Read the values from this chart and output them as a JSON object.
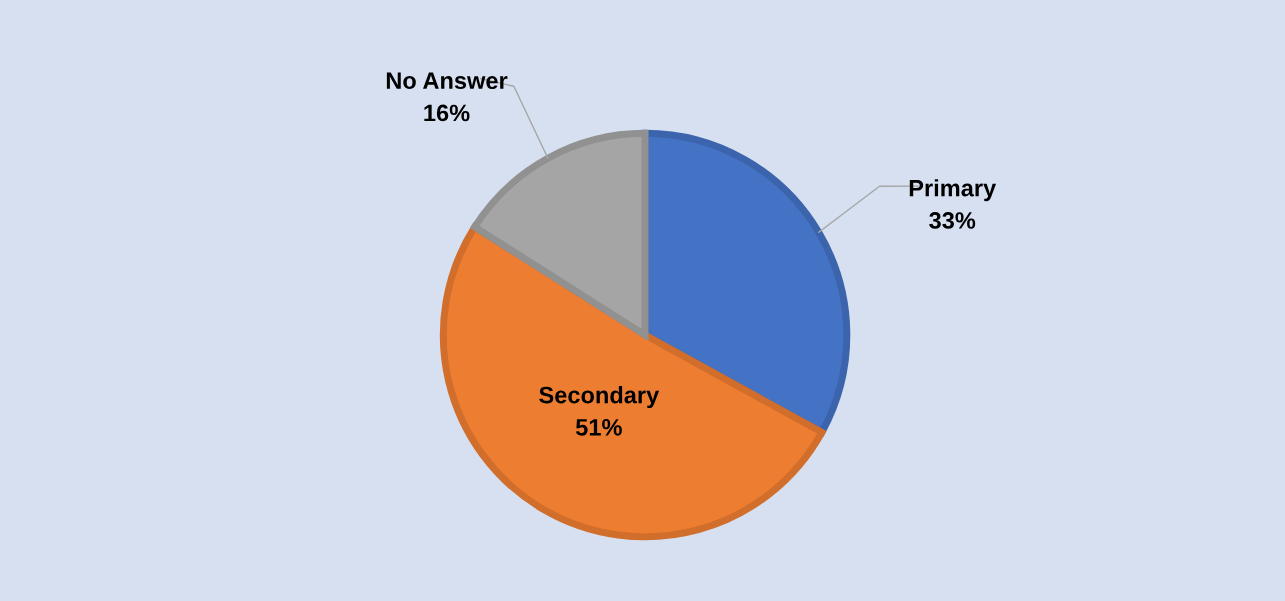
{
  "chart_data": {
    "type": "pie",
    "categories": [
      "Primary",
      "Secondary",
      "No Answer"
    ],
    "values": [
      33,
      51,
      16
    ],
    "value_labels": [
      "33%",
      "51%",
      "16%"
    ],
    "colors": [
      "#4472c4",
      "#ed7d31",
      "#a5a5a5"
    ],
    "legend": false
  }
}
